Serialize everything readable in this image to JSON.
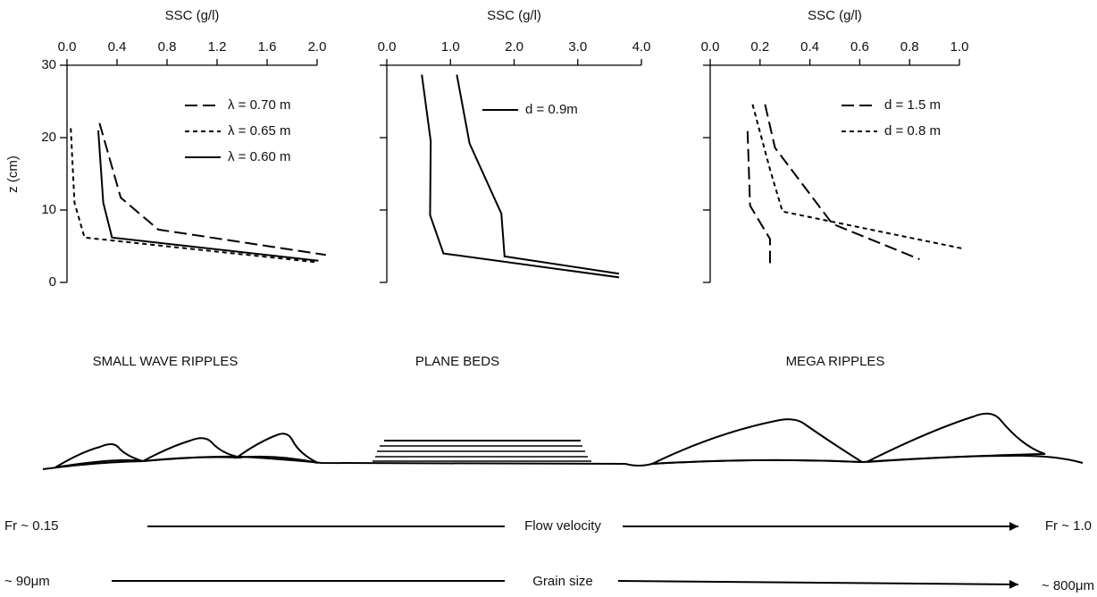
{
  "chart_data": [
    {
      "type": "line",
      "title": "SSC (g/l)",
      "ylabel": "z (cm)",
      "color": "#000000",
      "xlim": [
        0,
        2.0
      ],
      "xticks": [
        {
          "value": 0,
          "label": "0.0"
        },
        0.4,
        0.8,
        1.2,
        1.6,
        {
          "value": 2.0,
          "label": "2.0"
        }
      ],
      "ylim": [
        0,
        30
      ],
      "yticks": [
        0,
        10,
        20,
        30
      ],
      "ytick_labels": true,
      "series": [
        {
          "name": "λ = 0.70 m",
          "dash": "long",
          "x": [
            0.26,
            0.43,
            0.73,
            2.07
          ],
          "values": [
            22,
            11.7,
            7.3,
            3.8
          ]
        },
        {
          "name": "λ = 0.65 m",
          "dash": "short",
          "x": [
            0.03,
            0.06,
            0.14,
            1.99
          ],
          "values": [
            21.3,
            11,
            6.2,
            2.8
          ]
        },
        {
          "name": "λ = 0.60 m",
          "dash": "solid",
          "x": [
            0.25,
            0.29,
            0.36,
            2.01
          ],
          "values": [
            21,
            11,
            6.2,
            3
          ]
        }
      ]
    },
    {
      "type": "line",
      "title": "SSC (g/l)",
      "color": "#000000",
      "xlim": [
        0,
        4.0
      ],
      "xticks": [
        {
          "value": 0,
          "label": "0.0"
        },
        {
          "value": 1,
          "label": "1.0"
        },
        {
          "value": 2,
          "label": "2.0"
        },
        {
          "value": 3,
          "label": "3.0"
        },
        {
          "value": 4,
          "label": "4.0"
        }
      ],
      "ylim": [
        0,
        30
      ],
      "yticks": [
        0,
        10,
        20,
        30
      ],
      "ytick_labels": false,
      "series": [
        {
          "name": "d = 0.9m",
          "dash": "solid",
          "x": [
            0.55,
            0.69,
            0.68,
            0.89,
            3.65
          ],
          "values": [
            28.7,
            19.5,
            9.3,
            4,
            0.7
          ]
        },
        {
          "dash": "solid",
          "x": [
            1.1,
            1.3,
            1.8,
            1.85,
            3.65
          ],
          "values": [
            28.7,
            19.2,
            9.5,
            3.6,
            1.2
          ]
        }
      ]
    },
    {
      "type": "line",
      "title": "SSC (g/l)",
      "color": "#000000",
      "xlim": [
        0,
        1.0
      ],
      "xticks": [
        {
          "value": 0,
          "label": "0.0"
        },
        0.2,
        0.4,
        0.6,
        0.8,
        {
          "value": 1.0,
          "label": "1.0"
        }
      ],
      "ylim": [
        0,
        30
      ],
      "yticks": [
        0,
        10,
        20,
        30
      ],
      "ytick_labels": false,
      "series": [
        {
          "name": "d = 1.5 m",
          "dash": "long",
          "x": [
            0.22,
            0.26,
            0.49,
            0.84
          ],
          "values": [
            24.6,
            18.6,
            8.1,
            3.2
          ]
        },
        {
          "name": "d = 0.8 m",
          "dash": "short",
          "x": [
            0.17,
            0.24,
            0.29,
            1.01
          ],
          "values": [
            24.6,
            15.6,
            9.8,
            4.7
          ]
        },
        {
          "dash": "long",
          "x": [
            0.15,
            0.16,
            0.24,
            0.24
          ],
          "values": [
            20.9,
            10.6,
            6.0,
            2.5
          ]
        }
      ]
    }
  ],
  "diagram": {
    "bedforms": [
      "SMALL WAVE RIPPLES",
      "PLANE BEDS",
      "MEGA RIPPLES"
    ],
    "flow": {
      "left": "Fr ~ 0.15",
      "label": "Flow velocity",
      "right": "Fr ~ 1.0"
    },
    "grain": {
      "left": "~ 90μm",
      "label": "Grain size",
      "right": "~ 800μm"
    }
  }
}
